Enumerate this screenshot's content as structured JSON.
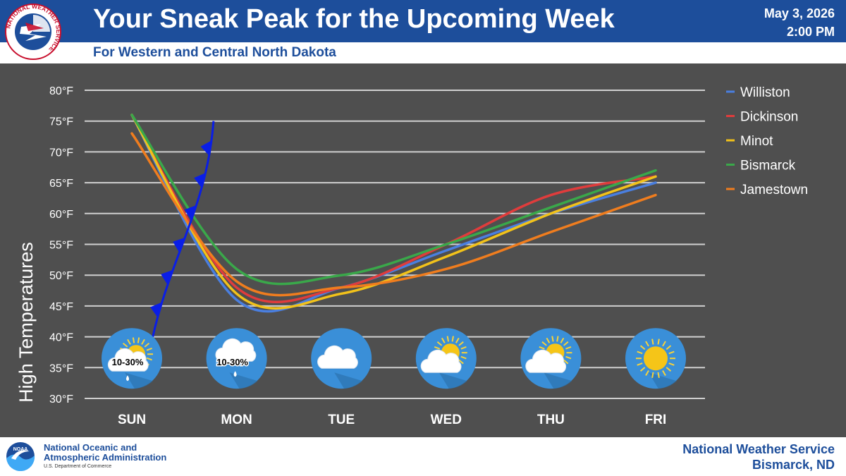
{
  "header": {
    "title": "Your Sneak Peak for the Upcoming Week",
    "subtitle": "For Western and Central North Dakota",
    "date": "May 3, 2026",
    "time": "2:00 PM",
    "logo_text": "NATIONAL WEATHER SERVICE"
  },
  "footer": {
    "noaa_line1": "National Oceanic and",
    "noaa_line2": "Atmospheric Administration",
    "noaa_dept": "U.S. Department of Commerce",
    "noaa_badge": "NOAA",
    "office_line1": "National Weather Service",
    "office_line2": "Bismarck, ND"
  },
  "colors": {
    "header_blue": "#1d4e9b",
    "background": "#4f4f4f",
    "grid": "#d0d0d0",
    "front": "#0a1ee6",
    "icon_blue": "#3a8fd8"
  },
  "chart_data": {
    "type": "line",
    "ylabel": "High Temperatures",
    "categories": [
      "SUN",
      "MON",
      "TUE",
      "WED",
      "THU",
      "FRI"
    ],
    "ylim": [
      30,
      80
    ],
    "yticks": [
      {
        "value": 30,
        "label": "30°F"
      },
      {
        "value": 35,
        "label": "35°F"
      },
      {
        "value": 40,
        "label": "40°F"
      },
      {
        "value": 45,
        "label": "45°F"
      },
      {
        "value": 50,
        "label": "50°F"
      },
      {
        "value": 55,
        "label": "55°F"
      },
      {
        "value": 60,
        "label": "60°F"
      },
      {
        "value": 65,
        "label": "65°F"
      },
      {
        "value": 70,
        "label": "70°F"
      },
      {
        "value": 75,
        "label": "75°F"
      },
      {
        "value": 80,
        "label": "80°F"
      }
    ],
    "grid": true,
    "legend": "right",
    "series": [
      {
        "name": "Williston",
        "color": "#4a7fe0",
        "values": [
          76,
          46,
          48,
          54,
          60,
          65
        ]
      },
      {
        "name": "Dickinson",
        "color": "#e03c3c",
        "values": [
          76,
          48,
          48,
          55,
          63,
          66
        ]
      },
      {
        "name": "Minot",
        "color": "#f2c21a",
        "values": [
          76,
          47,
          47,
          53,
          60,
          66
        ]
      },
      {
        "name": "Bismarck",
        "color": "#3aa84a",
        "values": [
          76,
          51,
          50,
          55,
          61,
          67
        ]
      },
      {
        "name": "Jamestown",
        "color": "#f07d1e",
        "values": [
          73,
          49,
          48,
          51,
          57,
          63
        ]
      }
    ],
    "annotations": [
      {
        "day": "SUN",
        "icon": "partly-sunny-rain-icon",
        "label": "10-30%"
      },
      {
        "day": "MON",
        "icon": "rain-cloud-icon",
        "label": "10-30%"
      },
      {
        "day": "TUE",
        "icon": "cloud-icon",
        "label": ""
      },
      {
        "day": "WED",
        "icon": "partly-cloudy-icon",
        "label": ""
      },
      {
        "day": "THU",
        "icon": "partly-cloudy-icon",
        "label": ""
      },
      {
        "day": "FRI",
        "icon": "sun-icon",
        "label": ""
      }
    ],
    "front": {
      "type": "cold-front",
      "from": [
        0.2,
        40
      ],
      "to": [
        0.78,
        75
      ]
    }
  }
}
